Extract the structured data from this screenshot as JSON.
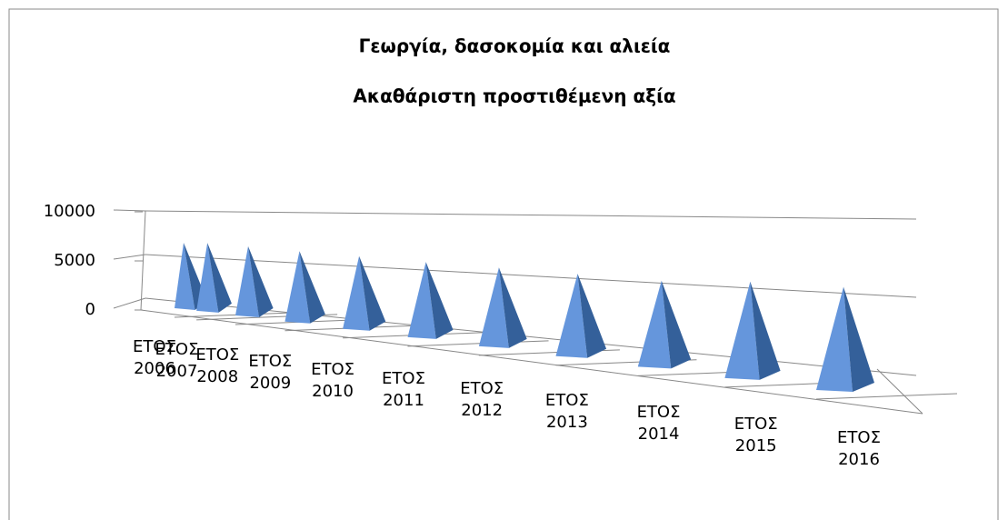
{
  "chart_data": {
    "type": "pyramid3d",
    "title": "Γεωργία, δασοκομία και αλιεία",
    "subtitle": "Ακαθάριστη προστιθέμενη αξία",
    "categories": [
      "ΕΤΟΣ 2006",
      "ΕΤΟΣ 2007",
      "ΕΤΟΣ 2008",
      "ΕΤΟΣ 2009",
      "ΕΤΟΣ 2010",
      "ΕΤΟΣ 2011",
      "ΕΤΟΣ 2012",
      "ΕΤΟΣ 2013",
      "ΕΤΟΣ 2014",
      "ΕΤΟΣ 2015",
      "ΕΤΟΣ 2016"
    ],
    "values": [
      6300,
      6300,
      6200,
      6100,
      6100,
      6100,
      6200,
      6300,
      6400,
      7000,
      7300
    ],
    "colors": {
      "front": "#6596dc",
      "side": "#34609a"
    },
    "ylim": [
      0,
      10000
    ],
    "yticks": [
      0,
      5000,
      10000
    ],
    "grid": true
  }
}
